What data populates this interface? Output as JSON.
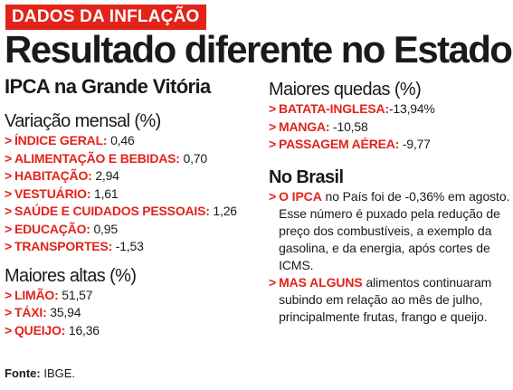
{
  "tag": "DADOS DA INFLAÇÃO",
  "headline": "Resultado diferente no Estado",
  "ipca_title": "IPCA na Grande Vitória",
  "mensal": {
    "title": "Variação mensal (%)",
    "items": [
      {
        "label": "ÍNDICE GERAL:",
        "value": "0,46"
      },
      {
        "label": "ALIMENTAÇÃO E BEBIDAS:",
        "value": "0,70"
      },
      {
        "label": "HABITAÇÃO:",
        "value": "2,94"
      },
      {
        "label": "VESTUÁRIO:",
        "value": "1,61"
      },
      {
        "label": "SAÚDE E CUIDADOS PESSOAIS:",
        "value": "1,26"
      },
      {
        "label": "EDUCAÇÃO:",
        "value": "0,95"
      },
      {
        "label": "TRANSPORTES:",
        "value": "-1,53"
      }
    ]
  },
  "altas": {
    "title": "Maiores altas (%)",
    "items": [
      {
        "label": "LIMÃO:",
        "value": "51,57"
      },
      {
        "label": "TÁXI:",
        "value": "35,94"
      },
      {
        "label": "QUEIJO:",
        "value": "16,36"
      }
    ]
  },
  "quedas": {
    "title": "Maiores quedas (%)",
    "items": [
      {
        "label": "BATATA-INGLESA:",
        "value": "-13,94%"
      },
      {
        "label": "MANGA:",
        "value": "-10,58"
      },
      {
        "label": "PASSAGEM AÉREA:",
        "value": "-9,77"
      }
    ]
  },
  "brasil": {
    "title": "No Brasil",
    "paragraphs": [
      {
        "lead": "O IPCA",
        "text": " no País foi de -0,36% em agosto. Esse número é puxado pela redução de preço dos combustíveis, a exemplo da gasolina, e da energia, após cortes de ICMS."
      },
      {
        "lead": "MAS ALGUNS",
        "text": " alimentos continuaram subindo em relação ao mês de julho, principalmente frutas, frango e queijo."
      }
    ]
  },
  "source": {
    "label": "Fonte:",
    "value": " IBGE."
  },
  "arrow": ">"
}
